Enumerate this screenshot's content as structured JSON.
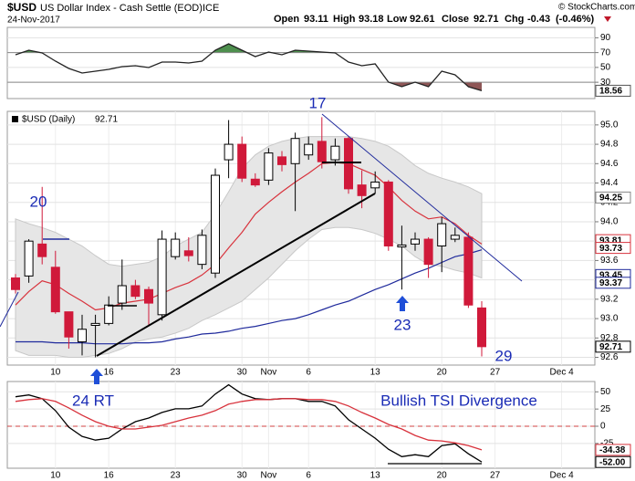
{
  "header": {
    "symbol": "$USD",
    "name": "US Dollar Index - Cash Settle (EOD)",
    "exchange": "ICE",
    "date": "24-Nov-2017",
    "copyright": "© StockCharts.com",
    "quote": [
      {
        "label": "Open",
        "value": 93.11
      },
      {
        "label": "High",
        "value": 93.18
      },
      {
        "label": "Low",
        "value": 92.61
      },
      {
        "label": "Close",
        "value": 92.71
      },
      {
        "label": "Chg",
        "value": -0.43,
        "percent": "(-0.46%)"
      }
    ]
  },
  "annotations": [
    "20",
    "17",
    "23",
    "29",
    "24 RT",
    "Bullish TSI Divergence"
  ],
  "chart_data": [
    {
      "type": "line",
      "ylim": [
        8,
        104
      ],
      "yticks": [
        90,
        70,
        50,
        30
      ],
      "series": [
        {
          "color": "#222222",
          "values": [
            67.1,
            73.2,
            69.5,
            58.5,
            48.6,
            42.5,
            44.9,
            47.4,
            51.1,
            52.3,
            49.8,
            57.2,
            57.2,
            56.0,
            58.5,
            73.2,
            81.8,
            73.2,
            64.6,
            70.8,
            67.1,
            73.2,
            72.0,
            70.8,
            69.5,
            57.2,
            52.3,
            54.8,
            30.2,
            24.0,
            30.2,
            24.0,
            44.9,
            40.0,
            24.0,
            18.56,
            null,
            null,
            null,
            null,
            null,
            null
          ]
        }
      ],
      "fills": [
        {
          "above": 70,
          "color": "#4e8f4e"
        },
        {
          "below": 30,
          "color": "#8e5656"
        }
      ],
      "markers": [
        {
          "value": 18.56,
          "color": "#555555"
        }
      ]
    },
    {
      "type": "candlestick",
      "legend": "$USD (Daily)",
      "last": 92.71,
      "categories": [
        null,
        null,
        null,
        "10",
        null,
        null,
        null,
        "16",
        null,
        null,
        null,
        null,
        "23",
        null,
        null,
        null,
        null,
        "30",
        null,
        "Nov",
        null,
        null,
        "6",
        null,
        null,
        null,
        null,
        "13",
        null,
        null,
        null,
        null,
        "20",
        null,
        null,
        null,
        "27",
        null,
        null,
        null,
        null,
        "Dec 4"
      ],
      "open": [
        93.42,
        93.44,
        93.77,
        93.53,
        93.07,
        92.76,
        92.93,
        92.95,
        93.16,
        93.34,
        93.3,
        93.04,
        93.64,
        93.7,
        93.56,
        93.47,
        94.64,
        94.8,
        94.44,
        94.43,
        94.67,
        94.6,
        94.69,
        94.83,
        94.64,
        94.86,
        94.38,
        94.35,
        94.41,
        93.74,
        93.77,
        93.82,
        93.75,
        93.82,
        93.84,
        93.11,
        null,
        null,
        null,
        null,
        null,
        null
      ],
      "high": [
        93.46,
        93.82,
        94.36,
        93.7,
        93.07,
        93.04,
        93.04,
        93.23,
        93.61,
        93.4,
        93.33,
        93.91,
        93.89,
        93.84,
        93.92,
        94.55,
        95.05,
        94.88,
        94.5,
        94.76,
        94.73,
        94.92,
        94.88,
        95.08,
        94.86,
        94.88,
        94.53,
        94.52,
        94.43,
        93.96,
        93.89,
        93.84,
        94.05,
        93.94,
        93.89,
        93.18,
        null,
        null,
        null,
        null,
        null,
        null
      ],
      "low": [
        93.26,
        93.37,
        93.56,
        93.05,
        92.69,
        92.62,
        92.6,
        92.93,
        93.09,
        93.2,
        92.93,
        92.98,
        93.61,
        93.59,
        93.51,
        93.42,
        94.45,
        94.41,
        94.36,
        94.38,
        94.52,
        94.11,
        94.64,
        94.55,
        94.58,
        94.29,
        94.14,
        94.29,
        93.7,
        93.3,
        93.7,
        93.42,
        93.48,
        93.79,
        93.11,
        92.61,
        null,
        null,
        null,
        null,
        null,
        null
      ],
      "close": [
        93.3,
        93.8,
        93.64,
        93.07,
        92.81,
        92.89,
        92.95,
        93.14,
        93.34,
        93.23,
        93.16,
        93.82,
        93.82,
        93.65,
        93.86,
        94.48,
        94.8,
        94.45,
        94.38,
        94.71,
        94.59,
        94.86,
        94.8,
        94.62,
        94.78,
        94.34,
        94.27,
        94.41,
        93.75,
        93.76,
        93.82,
        93.56,
        93.98,
        93.86,
        93.14,
        92.71,
        null,
        null,
        null,
        null,
        null,
        null
      ],
      "up_color": "#ffffff",
      "down_color": "#d0193a",
      "band": {
        "color": "#e6e6e6",
        "upper": [
          94.03,
          93.98,
          93.94,
          93.89,
          93.82,
          93.75,
          93.65,
          93.56,
          93.54,
          93.56,
          93.58,
          93.64,
          93.75,
          93.82,
          93.89,
          94.08,
          94.31,
          94.55,
          94.69,
          94.78,
          94.83,
          94.86,
          94.88,
          94.88,
          94.88,
          94.88,
          94.86,
          94.83,
          94.78,
          94.69,
          94.58,
          94.5,
          94.45,
          94.41,
          94.36,
          94.29,
          null,
          null,
          null,
          null,
          null,
          null
        ],
        "lower": [
          92.67,
          92.62,
          92.62,
          92.62,
          92.6,
          92.6,
          92.62,
          92.64,
          92.69,
          92.76,
          92.79,
          92.81,
          92.85,
          92.9,
          92.98,
          93.04,
          93.11,
          93.18,
          93.3,
          93.42,
          93.56,
          93.7,
          93.82,
          93.92,
          93.94,
          93.94,
          93.92,
          93.88,
          93.82,
          93.75,
          93.64,
          93.56,
          93.54,
          93.5,
          93.47,
          93.42,
          null,
          null,
          null,
          null,
          null,
          null
        ]
      },
      "series": [
        {
          "color": "#d8323c",
          "values": [
            93.14,
            93.28,
            93.39,
            93.35,
            93.26,
            93.18,
            93.09,
            93.11,
            93.16,
            93.18,
            93.2,
            93.26,
            93.32,
            93.37,
            93.45,
            93.56,
            93.73,
            93.89,
            94.08,
            94.2,
            94.31,
            94.41,
            94.5,
            94.6,
            94.61,
            94.6,
            94.54,
            94.48,
            94.36,
            94.22,
            94.11,
            94.03,
            94.05,
            93.98,
            93.86,
            93.77,
            null,
            null,
            null,
            null,
            null,
            null
          ]
        },
        {
          "color": "#1f2a9c",
          "values": [
            92.76,
            92.76,
            92.76,
            92.75,
            92.75,
            92.75,
            92.74,
            92.74,
            92.74,
            92.75,
            92.75,
            92.76,
            92.79,
            92.81,
            92.84,
            92.85,
            92.87,
            92.9,
            92.92,
            92.95,
            92.98,
            93.0,
            93.04,
            93.09,
            93.14,
            93.18,
            93.24,
            93.3,
            93.35,
            93.41,
            93.47,
            93.52,
            93.58,
            93.64,
            93.67,
            93.71,
            null,
            null,
            null,
            null,
            null,
            null
          ]
        }
      ],
      "ylim": [
        92.52,
        95.14
      ],
      "yticks": [
        {
          "value": 95,
          "label": "95.0"
        },
        94.8,
        94.6,
        94.4,
        94.2,
        {
          "value": 94,
          "label": "94.0"
        },
        93.8,
        93.6,
        93.4,
        93.2,
        {
          "value": 93,
          "label": "93.0"
        },
        92.8,
        92.6
      ],
      "markers": [
        {
          "value": 94.25,
          "color": "#888888"
        },
        {
          "value": 93.81,
          "color": "#d8323c"
        },
        {
          "value": 93.73,
          "color": "#d8323c"
        },
        {
          "value": 93.45,
          "color": "#1f2a9c"
        },
        {
          "value": 93.37,
          "color": "#1f2a9c"
        },
        {
          "value": 92.71,
          "color": "#000000"
        }
      ]
    },
    {
      "type": "line",
      "ylim": [
        -61,
        65
      ],
      "yticks": [
        50,
        25,
        0,
        -25
      ],
      "categories": [
        null,
        null,
        null,
        "10",
        null,
        null,
        null,
        "16",
        null,
        null,
        null,
        null,
        "23",
        null,
        null,
        null,
        null,
        "30",
        null,
        "Nov",
        null,
        null,
        "6",
        null,
        null,
        null,
        null,
        "13",
        null,
        null,
        null,
        null,
        "20",
        null,
        null,
        null,
        "27",
        null,
        null,
        null,
        null,
        "Dec 4"
      ],
      "zero_line": {
        "value": 0,
        "color": "#d04040"
      },
      "series": [
        {
          "color": "#000000",
          "values": [
            42.8,
            45.5,
            40.1,
            22.7,
            -1.3,
            -14.7,
            -20.1,
            -17.4,
            -4.0,
            6.7,
            12.0,
            20.1,
            25.4,
            25.4,
            29.4,
            46.8,
            60.2,
            46.8,
            40.1,
            38.8,
            40.1,
            40.1,
            36.1,
            36.1,
            29.4,
            9.4,
            -4.0,
            -17.4,
            -33.4,
            -44.1,
            -41.4,
            -44.1,
            -28.1,
            -25.4,
            -40.1,
            -52.0,
            null,
            null,
            null,
            null,
            null,
            null
          ]
        },
        {
          "color": "#d8323c",
          "values": [
            36.1,
            38.8,
            40.1,
            36.1,
            26.7,
            16.0,
            6.7,
            0,
            -4.0,
            -4.0,
            -1.3,
            1.3,
            6.7,
            12.0,
            16.0,
            22.7,
            32.1,
            36.1,
            38.8,
            38.8,
            40.1,
            40.1,
            38.8,
            38.8,
            36.1,
            29.4,
            20.1,
            12.0,
            2.7,
            -4.0,
            -13.4,
            -20.1,
            -21.4,
            -24.1,
            -28.1,
            -34.38,
            null,
            null,
            null,
            null,
            null,
            null
          ]
        }
      ],
      "markers": [
        {
          "value": -34.38,
          "color": "#d8323c"
        },
        {
          "value": -52,
          "label": "-52.00",
          "color": "#000000"
        }
      ]
    }
  ]
}
